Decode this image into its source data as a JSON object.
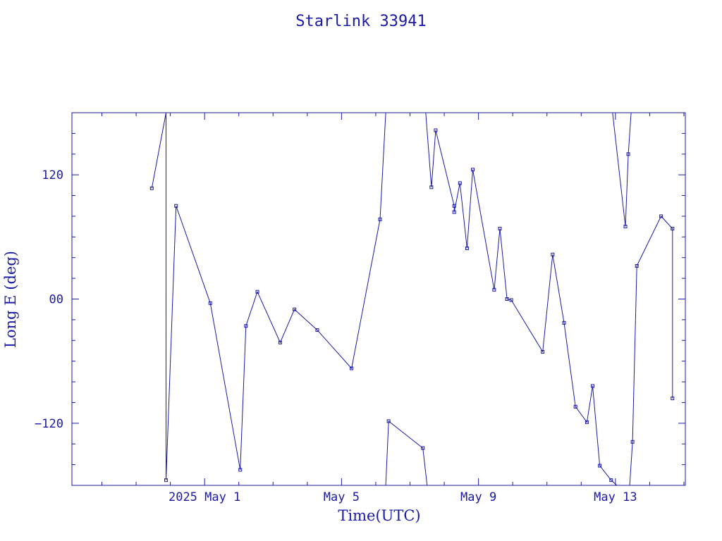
{
  "chart_data": {
    "type": "line",
    "title": "Starlink 33941",
    "xlabel": "Time(UTC)",
    "ylabel": "Long E (deg)",
    "x_range": [
      "2025-04-27 03:00",
      "2025-05-15 01:00"
    ],
    "ylim": [
      -180,
      180
    ],
    "x_tick_labels": [
      {
        "label": "2025 May  1",
        "date": "2025-05-01 00:00"
      },
      {
        "label": "May  5",
        "date": "2025-05-05 00:00"
      },
      {
        "label": "May  9",
        "date": "2025-05-09 00:00"
      },
      {
        "label": "May 13",
        "date": "2025-05-13 00:00"
      }
    ],
    "y_tick_labels": [
      {
        "label": "120",
        "value": 120
      },
      {
        "label": "00",
        "value": 0
      },
      {
        "label": "−120",
        "value": -120
      }
    ],
    "grid": false,
    "color": "#1a1aa6",
    "series": [
      {
        "points": [
          [
            "2025-04-29 11:00",
            107
          ],
          [
            "2025-04-29 21:00",
            180
          ],
          [
            "2025-04-29 21:00",
            -175
          ],
          [
            "2025-04-30 04:00",
            90
          ],
          [
            "2025-05-01 04:00",
            -4
          ],
          [
            "2025-05-02 01:00",
            -165
          ],
          [
            "2025-05-02 05:00",
            -26
          ],
          [
            "2025-05-02 13:00",
            7
          ],
          [
            "2025-05-03 05:00",
            -42
          ],
          [
            "2025-05-03 15:00",
            -10
          ],
          [
            "2025-05-04 07:00",
            -30
          ],
          [
            "2025-05-05 07:00",
            -67
          ],
          [
            "2025-05-06 03:00",
            77
          ],
          [
            "2025-05-06 07:00",
            180
          ]
        ]
      },
      {
        "points": [
          [
            "2025-05-06 07:00",
            -180
          ],
          [
            "2025-05-06 09:00",
            -118
          ],
          [
            "2025-05-07 09:00",
            -144
          ],
          [
            "2025-05-07 12:00",
            -180
          ]
        ]
      },
      {
        "points": [
          [
            "2025-05-07 11:00",
            180
          ],
          [
            "2025-05-07 15:00",
            108
          ],
          [
            "2025-05-07 18:00",
            163
          ],
          [
            "2025-05-08 07:00",
            90
          ],
          [
            "2025-05-08 07:00",
            84
          ],
          [
            "2025-05-08 11:00",
            112
          ],
          [
            "2025-05-08 16:00",
            49
          ],
          [
            "2025-05-08 20:00",
            125
          ],
          [
            "2025-05-09 11:00",
            9
          ],
          [
            "2025-05-09 15:00",
            68
          ],
          [
            "2025-05-09 20:00",
            0
          ],
          [
            "2025-05-09 23:00",
            -1
          ],
          [
            "2025-05-10 21:00",
            -51
          ],
          [
            "2025-05-11 04:00",
            43
          ],
          [
            "2025-05-11 12:00",
            -23
          ],
          [
            "2025-05-11 20:00",
            -104
          ],
          [
            "2025-05-12 04:00",
            -119
          ],
          [
            "2025-05-12 08:00",
            -84
          ],
          [
            "2025-05-12 13:00",
            -161
          ],
          [
            "2025-05-12 21:00",
            -175
          ],
          [
            "2025-05-13 01:00",
            -180
          ]
        ]
      },
      {
        "points": [
          [
            "2025-05-12 22:00",
            180
          ],
          [
            "2025-05-13 07:00",
            70
          ],
          [
            "2025-05-13 09:00",
            140
          ],
          [
            "2025-05-13 11:00",
            180
          ]
        ]
      },
      {
        "points": [
          [
            "2025-05-13 10:00",
            -180
          ],
          [
            "2025-05-13 12:00",
            -138
          ],
          [
            "2025-05-13 15:00",
            32
          ],
          [
            "2025-05-14 08:00",
            80
          ],
          [
            "2025-05-14 16:00",
            68
          ],
          [
            "2025-05-14 16:00",
            -96
          ]
        ]
      }
    ]
  }
}
